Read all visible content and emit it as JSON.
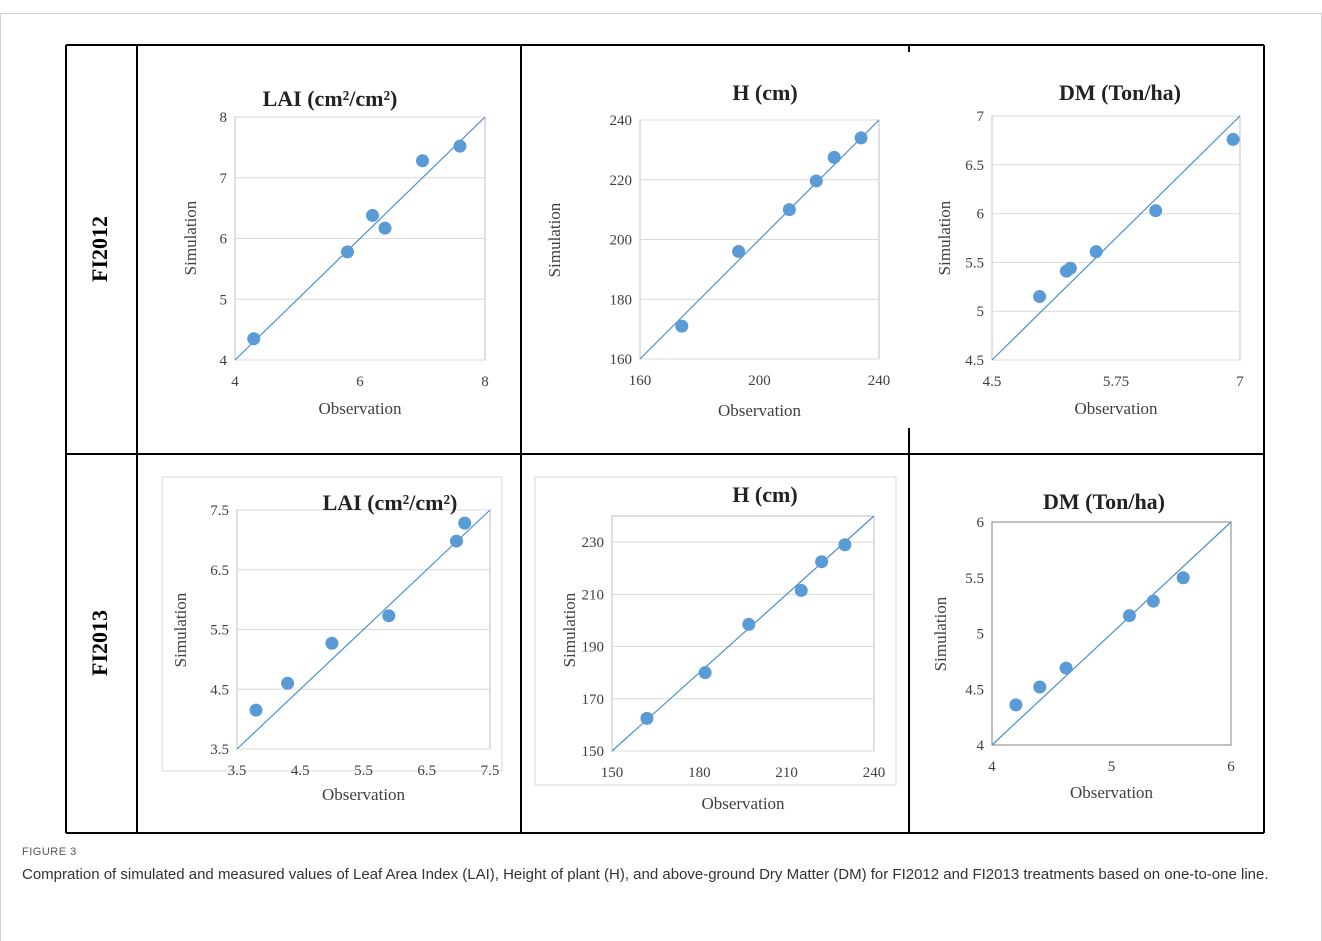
{
  "figure": {
    "label": "FIGURE 3",
    "caption": "Compration of simulated and measured values of Leaf Area Index (LAI), Height of plant (H), and above-ground Dry Matter (DM) for FI2012 and FI2013 treatments based on one-to-one line."
  },
  "rows": [
    {
      "label": "FI2012"
    },
    {
      "label": "FI2013"
    }
  ],
  "colors": {
    "marker": "#5b9bd5",
    "line": "#4a8fcf",
    "grid": "#d9d9d9",
    "axis": "#bfbfbf",
    "text": "#404040",
    "table_border": "#000000"
  },
  "chart_data": [
    {
      "type": "scatter",
      "row": "FI2012",
      "title": "LAI (cm²/cm²)",
      "xlabel": "Observation",
      "ylabel": "Simulation",
      "xlim": [
        4,
        8
      ],
      "ylim": [
        4,
        8
      ],
      "xticks": [
        "4",
        "6",
        "8"
      ],
      "yticks": [
        "4",
        "5",
        "6",
        "7",
        "8"
      ],
      "grid": "horizontal",
      "one_to_one_line": true,
      "points": [
        [
          4.3,
          4.35
        ],
        [
          5.8,
          5.78
        ],
        [
          6.2,
          6.38
        ],
        [
          6.4,
          6.17
        ],
        [
          7.0,
          7.28
        ],
        [
          7.6,
          7.52
        ]
      ]
    },
    {
      "type": "scatter",
      "row": "FI2012",
      "title": "H (cm)",
      "xlabel": "Observation",
      "ylabel": "Simulation",
      "xlim": [
        160,
        240
      ],
      "ylim": [
        160,
        240
      ],
      "xticks": [
        "160",
        "200",
        "240"
      ],
      "yticks": [
        "160",
        "180",
        "200",
        "220",
        "240"
      ],
      "grid": "horizontal",
      "one_to_one_line": true,
      "points": [
        [
          174,
          171
        ],
        [
          193,
          196
        ],
        [
          210,
          210
        ],
        [
          219,
          219.6
        ],
        [
          225,
          227.5
        ],
        [
          234,
          234
        ]
      ]
    },
    {
      "type": "scatter",
      "row": "FI2012",
      "title": "DM (Ton/ha)",
      "xlabel": "Observation",
      "ylabel": "Simulation",
      "xlim": [
        4.5,
        7
      ],
      "ylim": [
        4.5,
        7
      ],
      "xticks": [
        "4.5",
        "5.75",
        "7"
      ],
      "yticks": [
        "4.5",
        "5",
        "5.5",
        "6",
        "6.5",
        "7"
      ],
      "grid": "horizontal",
      "one_to_one_line": true,
      "points": [
        [
          4.98,
          5.15
        ],
        [
          5.25,
          5.41
        ],
        [
          5.29,
          5.44
        ],
        [
          5.55,
          5.61
        ],
        [
          6.15,
          6.03
        ],
        [
          6.93,
          6.76
        ]
      ]
    },
    {
      "type": "scatter",
      "row": "FI2013",
      "title": "LAI (cm²/cm²)",
      "xlabel": "Observation",
      "ylabel": "Simulation",
      "xlim": [
        3.5,
        7.5
      ],
      "ylim": [
        3.5,
        7.5
      ],
      "xticks": [
        "3.5",
        "4.5",
        "5.5",
        "6.5",
        "7.5"
      ],
      "yticks": [
        "3.5",
        "4.5",
        "5.5",
        "6.5",
        "7.5"
      ],
      "grid": "horizontal",
      "one_to_one_line": true,
      "points": [
        [
          3.8,
          4.15
        ],
        [
          4.3,
          4.6
        ],
        [
          5.0,
          5.27
        ],
        [
          5.9,
          5.73
        ],
        [
          6.97,
          6.98
        ],
        [
          7.1,
          7.28
        ]
      ]
    },
    {
      "type": "scatter",
      "row": "FI2013",
      "title": "H (cm)",
      "xlabel": "Observation",
      "ylabel": "Simulation",
      "xlim": [
        150,
        240
      ],
      "ylim": [
        150,
        240
      ],
      "xticks": [
        "150",
        "180",
        "210",
        "240"
      ],
      "yticks": [
        "150",
        "170",
        "190",
        "210",
        "230"
      ],
      "grid": "horizontal",
      "one_to_one_line": true,
      "points": [
        [
          162,
          162.5
        ],
        [
          182,
          180
        ],
        [
          197,
          198.5
        ],
        [
          215,
          211.5
        ],
        [
          222,
          222.5
        ],
        [
          230,
          229
        ]
      ]
    },
    {
      "type": "scatter",
      "row": "FI2013",
      "title": "DM (Ton/ha)",
      "xlabel": "Observation",
      "ylabel": "Simulation",
      "xlim": [
        4,
        6
      ],
      "ylim": [
        4,
        6
      ],
      "xticks": [
        "4",
        "5",
        "6"
      ],
      "yticks": [
        "4",
        "4.5",
        "5",
        "5.5",
        "6"
      ],
      "grid": "none",
      "one_to_one_line": true,
      "points": [
        [
          4.2,
          4.36
        ],
        [
          4.4,
          4.52
        ],
        [
          4.62,
          4.69
        ],
        [
          5.15,
          5.16
        ],
        [
          5.35,
          5.29
        ],
        [
          5.6,
          5.5
        ]
      ]
    }
  ]
}
